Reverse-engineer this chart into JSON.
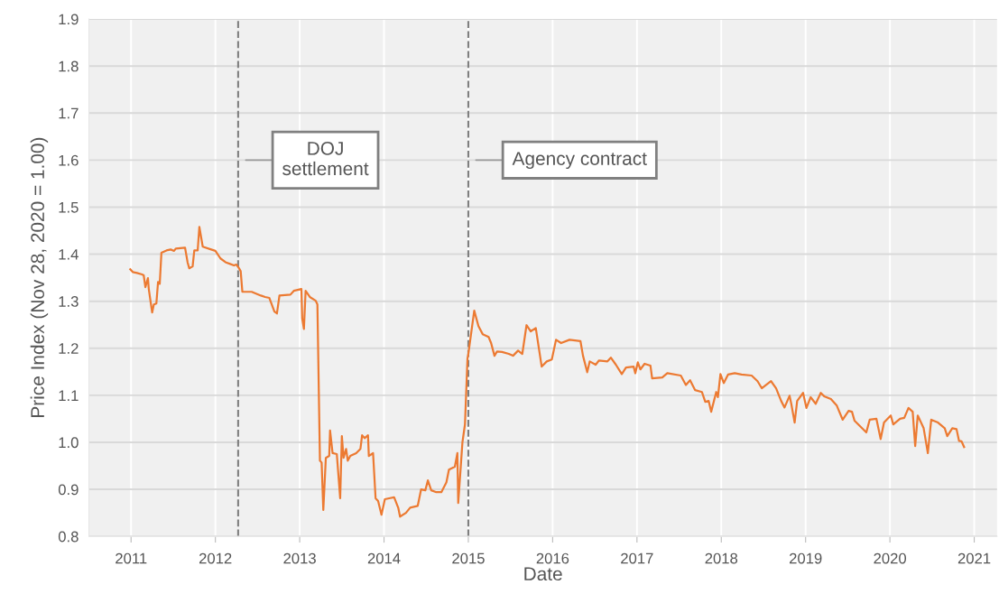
{
  "chart_data": {
    "type": "line",
    "xlabel": "Date",
    "ylabel": "Price Index (Nov 28, 2020 = 1.00)",
    "xlim": [
      2010.5,
      2021.27
    ],
    "xticks": [
      2011,
      2012,
      2013,
      2014,
      2015,
      2016,
      2017,
      2018,
      2019,
      2020,
      2021
    ],
    "ylim": [
      0.8,
      1.9
    ],
    "yticks": [
      {
        "value": 0.8,
        "label": "0.8"
      },
      {
        "value": 0.9,
        "label": "0.9"
      },
      {
        "value": 1.0,
        "label": "1.0"
      },
      {
        "value": 1.1,
        "label": "1.1"
      },
      {
        "value": 1.2,
        "label": "1.2"
      },
      {
        "value": 1.3,
        "label": "1.3"
      },
      {
        "value": 1.4,
        "label": "1.4"
      },
      {
        "value": 1.5,
        "label": "1.5"
      },
      {
        "value": 1.6,
        "label": "1.6"
      },
      {
        "value": 1.7,
        "label": "1.7"
      },
      {
        "value": 1.8,
        "label": "1.8"
      },
      {
        "value": 1.9,
        "label": "1.9"
      }
    ],
    "grid": true,
    "marker": "none",
    "line_style": "solid",
    "ref_lines": [
      {
        "axis": "x",
        "value": 2012.27,
        "label": "DOJ\nsettlement",
        "color": "#7f7f7f",
        "line_style": "dashed"
      },
      {
        "axis": "x",
        "value": 2015.0,
        "label": "Agency contract",
        "color": "#7f7f7f",
        "line_style": "dashed"
      }
    ],
    "series": [
      {
        "color": "#ec7a32",
        "x": [
          2010.99,
          2011.02,
          2011.07,
          2011.13,
          2011.15,
          2011.17,
          2011.2,
          2011.21,
          2011.25,
          2011.27,
          2011.3,
          2011.32,
          2011.34,
          2011.36,
          2011.42,
          2011.47,
          2011.51,
          2011.53,
          2011.64,
          2011.67,
          2011.69,
          2011.73,
          2011.75,
          2011.79,
          2011.81,
          2011.85,
          2011.95,
          2012.0,
          2012.06,
          2012.12,
          2012.22,
          2012.25,
          2012.28,
          2012.3,
          2012.32,
          2012.43,
          2012.54,
          2012.59,
          2012.64,
          2012.7,
          2012.73,
          2012.76,
          2012.89,
          2012.93,
          2013.02,
          2013.03,
          2013.05,
          2013.07,
          2013.12,
          2013.19,
          2013.21,
          2013.24,
          2013.26,
          2013.28,
          2013.31,
          2013.35,
          2013.36,
          2013.39,
          2013.44,
          2013.48,
          2013.5,
          2013.52,
          2013.55,
          2013.57,
          2013.6,
          2013.67,
          2013.72,
          2013.74,
          2013.77,
          2013.81,
          2013.82,
          2013.87,
          2013.9,
          2013.93,
          2013.97,
          2014.01,
          2014.06,
          2014.12,
          2014.17,
          2014.19,
          2014.26,
          2014.31,
          2014.4,
          2014.44,
          2014.49,
          2014.52,
          2014.56,
          2014.62,
          2014.68,
          2014.74,
          2014.77,
          2014.84,
          2014.87,
          2014.88,
          2014.93,
          2014.96,
          2014.99,
          2015.0,
          2015.07,
          2015.12,
          2015.17,
          2015.24,
          2015.27,
          2015.31,
          2015.34,
          2015.4,
          2015.48,
          2015.53,
          2015.59,
          2015.64,
          2015.69,
          2015.74,
          2015.8,
          2015.87,
          2015.93,
          2015.99,
          2016.04,
          2016.1,
          2016.2,
          2016.33,
          2016.36,
          2016.41,
          2016.44,
          2016.51,
          2016.55,
          2016.65,
          2016.69,
          2016.75,
          2016.82,
          2016.87,
          2016.96,
          2016.98,
          2017.01,
          2017.04,
          2017.09,
          2017.16,
          2017.18,
          2017.3,
          2017.36,
          2017.52,
          2017.58,
          2017.63,
          2017.69,
          2017.77,
          2017.81,
          2017.85,
          2017.88,
          2017.94,
          2017.96,
          2017.99,
          2018.03,
          2018.08,
          2018.16,
          2018.24,
          2018.36,
          2018.43,
          2018.48,
          2018.59,
          2018.65,
          2018.71,
          2018.75,
          2018.81,
          2018.83,
          2018.87,
          2018.9,
          2018.97,
          2019.01,
          2019.06,
          2019.12,
          2019.18,
          2019.22,
          2019.3,
          2019.37,
          2019.44,
          2019.51,
          2019.55,
          2019.58,
          2019.72,
          2019.76,
          2019.84,
          2019.89,
          2019.93,
          2020.01,
          2020.04,
          2020.12,
          2020.17,
          2020.22,
          2020.27,
          2020.3,
          2020.33,
          2020.4,
          2020.45,
          2020.49,
          2020.57,
          2020.65,
          2020.68,
          2020.74,
          2020.79,
          2020.82,
          2020.85,
          2020.88
        ],
        "values": [
          1.368,
          1.362,
          1.36,
          1.357,
          1.355,
          1.33,
          1.349,
          1.326,
          1.276,
          1.293,
          1.295,
          1.341,
          1.337,
          1.403,
          1.408,
          1.41,
          1.407,
          1.412,
          1.414,
          1.383,
          1.37,
          1.374,
          1.408,
          1.408,
          1.458,
          1.416,
          1.41,
          1.407,
          1.391,
          1.383,
          1.376,
          1.378,
          1.37,
          1.364,
          1.32,
          1.32,
          1.312,
          1.309,
          1.307,
          1.278,
          1.274,
          1.312,
          1.314,
          1.322,
          1.326,
          1.263,
          1.241,
          1.322,
          1.309,
          1.301,
          1.293,
          0.961,
          0.957,
          0.856,
          0.967,
          0.971,
          1.025,
          0.977,
          0.975,
          0.881,
          1.013,
          0.967,
          0.986,
          0.961,
          0.971,
          0.977,
          0.986,
          1.015,
          1.009,
          1.015,
          0.971,
          0.977,
          0.881,
          0.875,
          0.846,
          0.879,
          0.881,
          0.883,
          0.86,
          0.842,
          0.85,
          0.861,
          0.865,
          0.9,
          0.898,
          0.919,
          0.898,
          0.894,
          0.894,
          0.915,
          0.942,
          0.948,
          0.977,
          0.871,
          1.0,
          1.038,
          1.178,
          1.188,
          1.28,
          1.247,
          1.23,
          1.224,
          1.211,
          1.184,
          1.193,
          1.192,
          1.188,
          1.184,
          1.195,
          1.188,
          1.249,
          1.236,
          1.243,
          1.161,
          1.172,
          1.176,
          1.218,
          1.211,
          1.218,
          1.215,
          1.184,
          1.149,
          1.172,
          1.165,
          1.174,
          1.172,
          1.18,
          1.165,
          1.145,
          1.159,
          1.161,
          1.147,
          1.17,
          1.155,
          1.167,
          1.163,
          1.136,
          1.138,
          1.147,
          1.142,
          1.122,
          1.132,
          1.111,
          1.107,
          1.086,
          1.088,
          1.065,
          1.107,
          1.096,
          1.145,
          1.126,
          1.144,
          1.147,
          1.144,
          1.142,
          1.13,
          1.115,
          1.13,
          1.115,
          1.088,
          1.074,
          1.099,
          1.082,
          1.042,
          1.088,
          1.105,
          1.073,
          1.096,
          1.082,
          1.105,
          1.098,
          1.092,
          1.078,
          1.048,
          1.067,
          1.065,
          1.046,
          1.021,
          1.048,
          1.05,
          1.007,
          1.042,
          1.057,
          1.038,
          1.05,
          1.052,
          1.073,
          1.065,
          0.992,
          1.057,
          1.03,
          0.977,
          1.048,
          1.042,
          1.03,
          1.013,
          1.03,
          1.028,
          1.003,
          1.002,
          0.99
        ]
      }
    ]
  }
}
